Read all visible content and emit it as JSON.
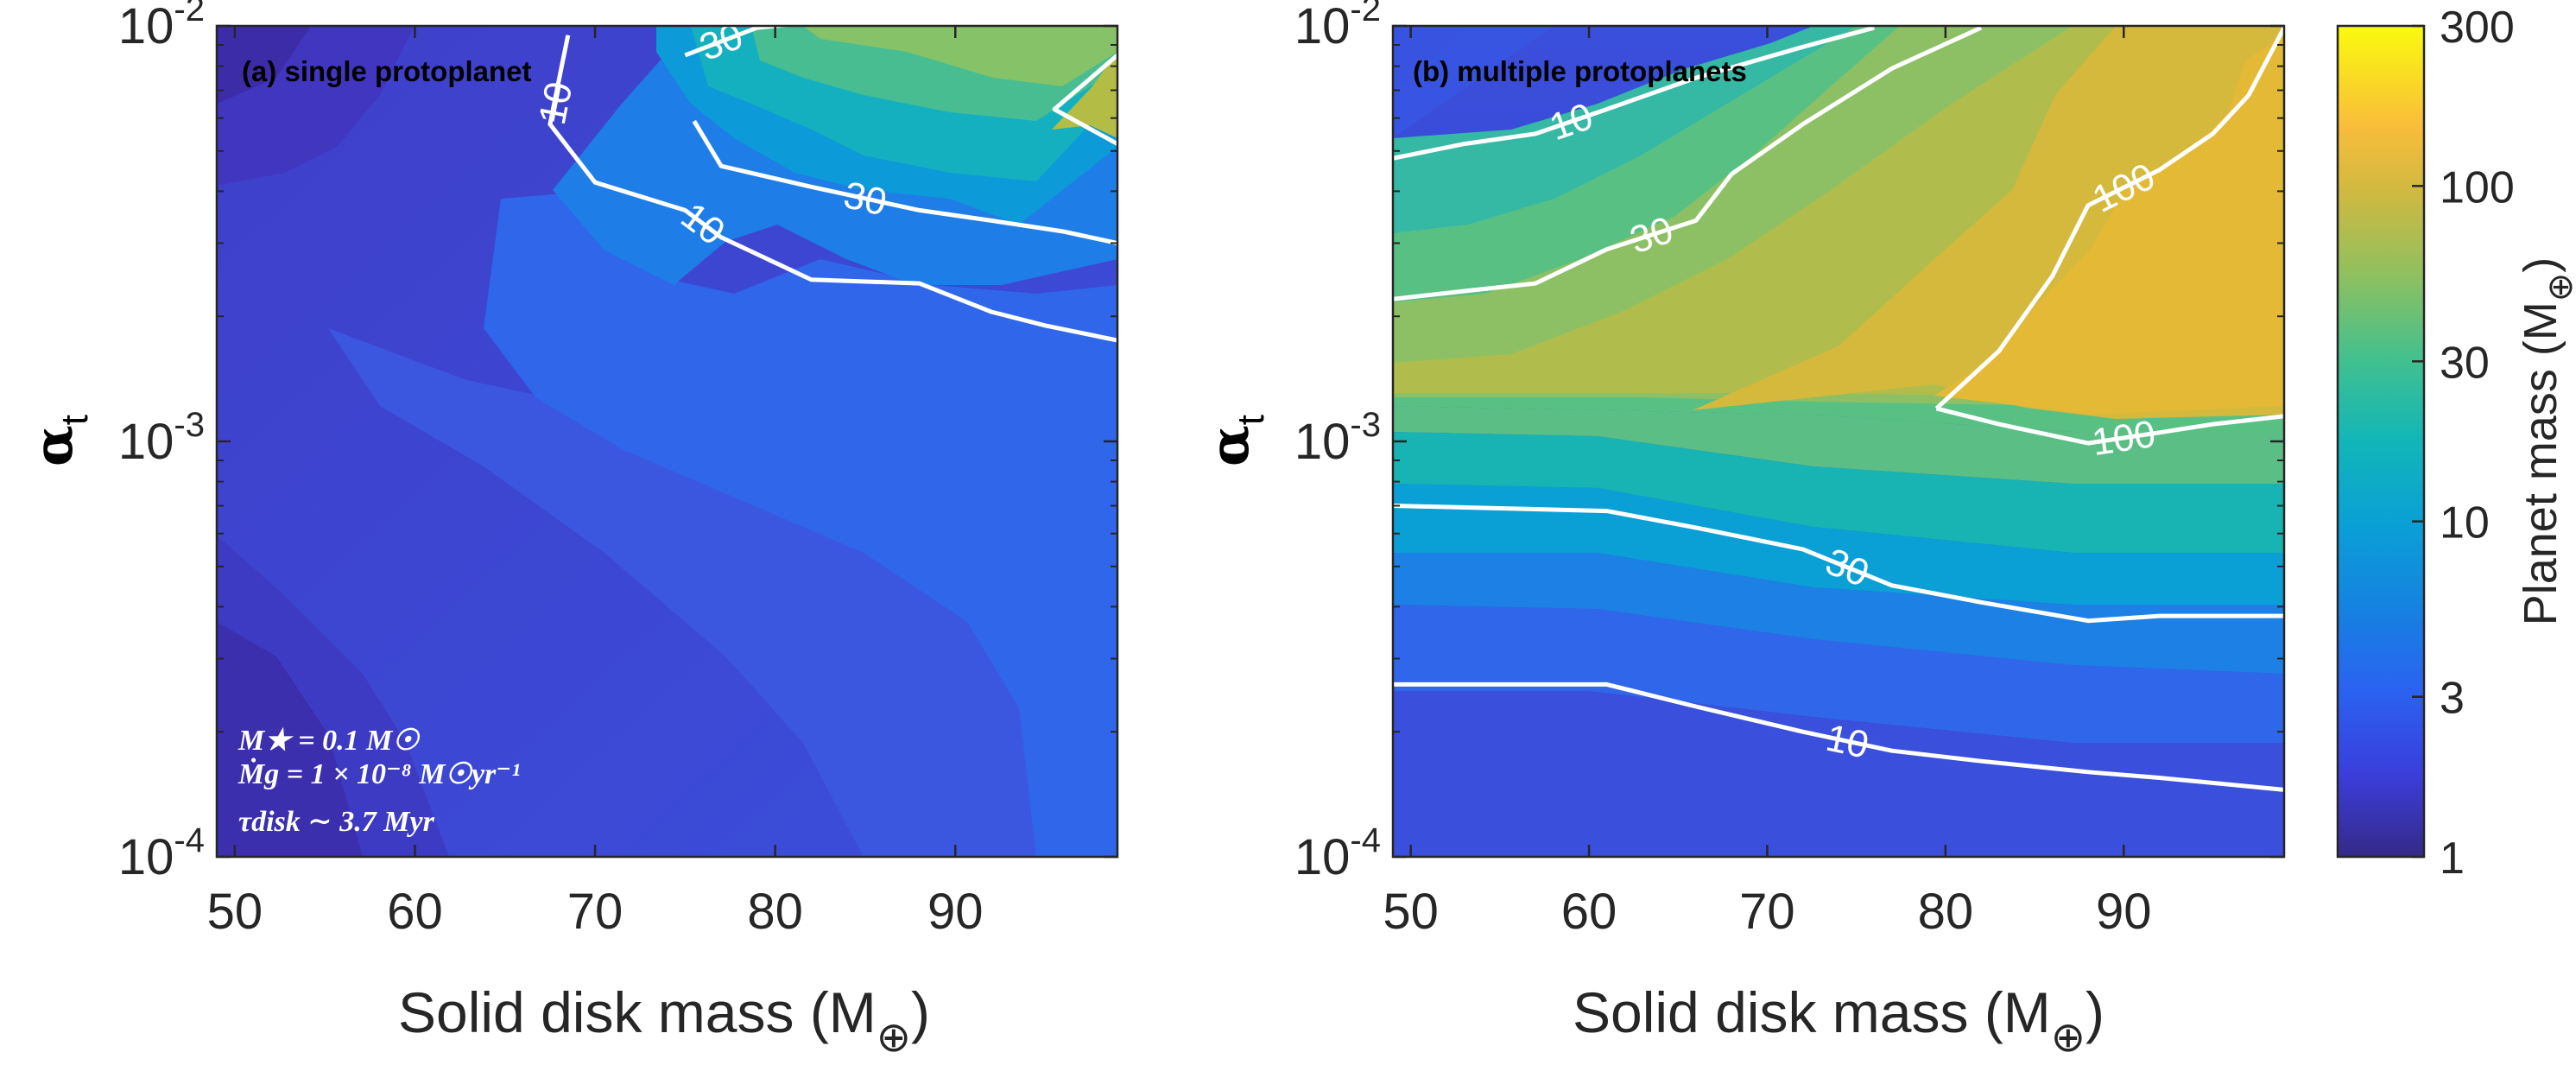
{
  "chart_data": [
    {
      "type": "contour",
      "panel_label": "(a) single protoplanet",
      "xlabel": "Solid disk mass (M",
      "xlabel_sub": "⊕",
      "xlabel_close": ")",
      "ylabel": "α",
      "ylabel_sub": "t",
      "x_ticks": [
        "50",
        "60",
        "70",
        "80",
        "90"
      ],
      "x_tick_values": [
        50,
        60,
        70,
        80,
        90
      ],
      "xlim": [
        49,
        99
      ],
      "y_ticks": [
        "10",
        "10",
        "10"
      ],
      "y_tick_exps": [
        "-2",
        "-3",
        "-4"
      ],
      "y_tick_values": [
        0.01,
        0.001,
        0.0001
      ],
      "ylim": [
        0.0001,
        0.01
      ],
      "y_scale": "log",
      "contour_lines": [
        {
          "level": 10,
          "label": "10",
          "points": [
            [
              68.5,
              0.0095
            ],
            [
              68.2,
              0.0082
            ],
            [
              67.5,
              0.0058
            ],
            [
              70,
              0.0042
            ],
            [
              75,
              0.0036
            ],
            [
              77,
              0.0031
            ],
            [
              82,
              0.00245
            ],
            [
              88,
              0.0024
            ],
            [
              92,
              0.00205
            ],
            [
              95,
              0.0019
            ],
            [
              99,
              0.00175
            ]
          ]
        },
        {
          "level": 10,
          "label": "10",
          "points": [
            [
              68,
              0.0072
            ],
            [
              67.6,
              0.0059
            ]
          ]
        },
        {
          "level": 30,
          "label": "30",
          "points": [
            [
              75,
              0.0085
            ],
            [
              79,
              0.0099
            ],
            [
              81,
              0.0101
            ]
          ]
        },
        {
          "level": 30,
          "label": "30",
          "points": [
            [
              75.5,
              0.0059
            ],
            [
              77,
              0.0046
            ],
            [
              82,
              0.0041
            ],
            [
              88,
              0.0036
            ],
            [
              92,
              0.0034
            ],
            [
              96,
              0.0032
            ],
            [
              99,
              0.003
            ]
          ]
        },
        {
          "level": 100,
          "label": "",
          "points": [
            [
              99,
              0.0085
            ],
            [
              95.5,
              0.0063
            ],
            [
              99,
              0.0052
            ]
          ]
        }
      ],
      "annotations": [
        "M★ = 0.1 M☉",
        "Ṁg = 1 × 10⁻⁸ M☉yr⁻¹",
        "τdisk ∼  3.7 Myr"
      ]
    },
    {
      "type": "contour",
      "panel_label": "(b) multiple protoplanets",
      "xlabel": "Solid disk mass (M",
      "xlabel_sub": "⊕",
      "xlabel_close": ")",
      "ylabel": "α",
      "ylabel_sub": "t",
      "x_ticks": [
        "50",
        "60",
        "70",
        "80",
        "90"
      ],
      "x_tick_values": [
        50,
        60,
        70,
        80,
        90
      ],
      "xlim": [
        49,
        99
      ],
      "y_ticks": [
        "10",
        "10",
        "10"
      ],
      "y_tick_exps": [
        "-2",
        "-3",
        "-4"
      ],
      "y_tick_values": [
        0.01,
        0.001,
        0.0001
      ],
      "ylim": [
        0.0001,
        0.01
      ],
      "y_scale": "log",
      "contour_lines": [
        {
          "level": 10,
          "label": "10",
          "points": [
            [
              49,
              0.0048
            ],
            [
              53,
              0.0052
            ],
            [
              57,
              0.0055
            ],
            [
              61,
              0.0063
            ],
            [
              66,
              0.0075
            ],
            [
              72,
              0.0089
            ],
            [
              76,
              0.0099
            ]
          ]
        },
        {
          "level": 30,
          "label": "30",
          "points": [
            [
              49,
              0.0022
            ],
            [
              53,
              0.0023
            ],
            [
              57,
              0.0024
            ],
            [
              61,
              0.0029
            ],
            [
              66,
              0.0034
            ],
            [
              68,
              0.0044
            ],
            [
              72,
              0.0058
            ],
            [
              77,
              0.0079
            ],
            [
              82,
              0.0099
            ]
          ]
        },
        {
          "level": 100,
          "label": "100",
          "points": [
            [
              79.5,
              0.0012
            ],
            [
              83,
              0.00165
            ],
            [
              86,
              0.0025
            ],
            [
              88,
              0.0037
            ],
            [
              92,
              0.0045
            ],
            [
              95,
              0.0055
            ],
            [
              97,
              0.0068
            ],
            [
              99,
              0.0099
            ]
          ]
        },
        {
          "level": 100,
          "label": "100",
          "points": [
            [
              79.5,
              0.0012
            ],
            [
              83,
              0.0011
            ],
            [
              88,
              0.00099
            ],
            [
              92,
              0.00105
            ],
            [
              95,
              0.0011
            ],
            [
              99,
              0.00115
            ]
          ]
        },
        {
          "level": 30,
          "label": "30",
          "points": [
            [
              49,
              0.0007
            ],
            [
              55,
              0.00069
            ],
            [
              61,
              0.00068
            ],
            [
              66,
              0.00062
            ],
            [
              72,
              0.00055
            ],
            [
              77,
              0.00045
            ],
            [
              82,
              0.00041
            ],
            [
              88,
              0.00037
            ],
            [
              92,
              0.00038
            ],
            [
              99,
              0.00038
            ]
          ]
        },
        {
          "level": 10,
          "label": "10",
          "points": [
            [
              49,
              0.00026
            ],
            [
              55,
              0.00026
            ],
            [
              61,
              0.00026
            ],
            [
              66,
              0.00023
            ],
            [
              72,
              0.0002
            ],
            [
              77,
              0.00018
            ],
            [
              82,
              0.00017
            ],
            [
              88,
              0.00016
            ],
            [
              92,
              0.000155
            ],
            [
              99,
              0.000145
            ]
          ]
        }
      ]
    }
  ],
  "colorbar": {
    "label": "Planet mass (M",
    "label_sub": "⊕",
    "label_close": ")",
    "ticks": [
      "300",
      "100",
      "30",
      "10",
      "3",
      "1"
    ],
    "tick_values": [
      300,
      100,
      30,
      10,
      3,
      1
    ],
    "range": [
      1,
      300
    ],
    "scale": "log",
    "colormap": "parula"
  },
  "colors": {
    "contour_line": "#ffffff",
    "axis": "#262626"
  }
}
